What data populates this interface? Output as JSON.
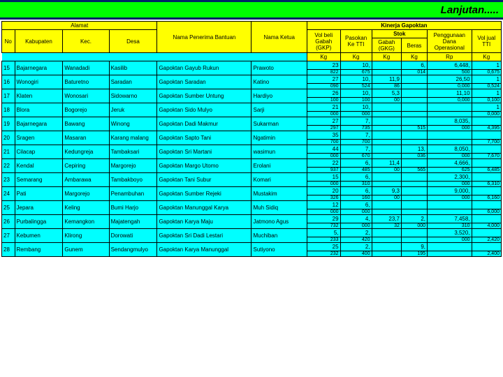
{
  "title": "Lanjutan.....",
  "hdr": {
    "alamat": "Alamat",
    "kinerja": "Kinerja Gapoktan",
    "no": "No",
    "kab": "Kabupaten",
    "kec": "Kec.",
    "desa": "Desa",
    "nama": "Nama Penerima Bantuan",
    "ketua": "Nama Ketua",
    "volbeli": "Vol beli Gabah (GKP)",
    "pasokan": "Pasokan Ke TTI",
    "stok": "Stok",
    "gabah": "Gabah (GKG)",
    "beras": "Beras",
    "pengg": "Penggunaan Dana Operasional",
    "voljual": "Vol jual TTI",
    "kg": "Kg",
    "rp": "Rp"
  },
  "rows": [
    {
      "no": "15",
      "kab": "Bajarnegara",
      "kec": "Wanadadi",
      "desa": "Kasilib",
      "nama": "Gapoktan Gayub Rukun",
      "ketua": "Prawoto",
      "a1": "23",
      "a2": "822",
      "b1": "10,",
      "b2": "675",
      "c1": "",
      "c2": "",
      "d1": "6,",
      "d2": "014",
      "e1": "6,448,",
      "e2": "500",
      "f1": "1",
      "f2": "0,675"
    },
    {
      "no": "16",
      "kab": "Wonogiri",
      "kec": "Baturetno",
      "desa": "Saradan",
      "nama": "Gapoktan Saradan",
      "ketua": "Katino",
      "a1": "27",
      "a2": "090",
      "b1": "10,",
      "b2": "524",
      "c1": "11,9",
      "c2": "86",
      "d1": "",
      "d2": "",
      "e1": "26,50",
      "e2": "0,000",
      "f1": "1",
      "f2": "0,524"
    },
    {
      "no": "17",
      "kab": "Klaten",
      "kec": "Wonosari",
      "desa": "Sidowarno",
      "nama": "Gapoktan Sumber Untung",
      "ketua": "Hardiyo",
      "a1": "26",
      "a2": "100",
      "b1": "10,",
      "b2": "100",
      "c1": "5,3",
      "c2": "00",
      "d1": "",
      "d2": "",
      "e1": "11,10",
      "e2": "0,000",
      "f1": "1",
      "f2": "0,100"
    },
    {
      "no": "18",
      "kab": "Blora",
      "kec": "Bogorejo",
      "desa": "Jeruk",
      "nama": "Gapoktan Sido Mulyo",
      "ketua": "Sarji",
      "a1": "21",
      "a2": "000",
      "b1": "10,",
      "b2": "000",
      "c1": "",
      "c2": "",
      "d1": "",
      "d2": "",
      "e1": "",
      "e2": "",
      "f1": "1",
      "f2": "0,000"
    },
    {
      "no": "19",
      "kab": "Bajarnegara",
      "kec": "Bawang",
      "desa": "Winong",
      "nama": "Gapoktan Dadi Makmur",
      "ketua": "Sukarman",
      "a1": "27",
      "a2": "297",
      "b1": "7,",
      "b2": "735",
      "c1": "",
      "c2": "",
      "d1": "",
      "d2": "515",
      "e1": "8,035,",
      "e2": "000",
      "f1": "",
      "f2": "4,395"
    },
    {
      "no": "20",
      "kab": "Sragen",
      "kec": "Masaran",
      "desa": "Karang malang",
      "nama": "Gapoktan Sapto Tani",
      "ketua": "Ngatimin",
      "a1": "35",
      "a2": "700",
      "b1": "7,",
      "b2": "700",
      "c1": "",
      "c2": "",
      "d1": "",
      "d2": "",
      "e1": "",
      "e2": "",
      "f1": "",
      "f2": "7,700"
    },
    {
      "no": "21",
      "kab": "Cilacap",
      "kec": "Kedungreja",
      "desa": "Tambaksari",
      "nama": "Gapoktan Sri Martani",
      "ketua": "wasimun",
      "a1": "44",
      "a2": "000",
      "b1": "7,",
      "b2": "670",
      "c1": "",
      "c2": "",
      "d1": "13,",
      "d2": "036",
      "e1": "8,050,",
      "e2": "000",
      "f1": "",
      "f2": "7,670"
    },
    {
      "no": "22",
      "kab": "Kendal",
      "kec": "Cepiring",
      "desa": "Margorejo",
      "nama": "Gapoktan Margo Utomo",
      "ketua": "Erolani",
      "a1": "22",
      "a2": "937",
      "b1": "6,",
      "b2": "485",
      "c1": "11,4",
      "c2": "00",
      "d1": "",
      "d2": "565",
      "e1": "4,666,",
      "e2": "625",
      "f1": "",
      "f2": "6,485"
    },
    {
      "no": "23",
      "kab": "Semarang",
      "kec": "Ambarawa",
      "desa": "Tambakboyo",
      "nama": "Gapoktan Tani Subur",
      "ketua": "Komari",
      "a1": "15",
      "a2": "000",
      "b1": "6,",
      "b2": "310",
      "c1": "",
      "c2": "",
      "d1": "",
      "d2": "",
      "e1": "2,300,",
      "e2": "000",
      "f1": "",
      "f2": "6,310"
    },
    {
      "no": "24",
      "kab": "Pati",
      "kec": "Margorejo",
      "desa": "Penambuhan",
      "nama": "Gapoktan Sumber Rejeki",
      "ketua": "Mustakim",
      "a1": "20",
      "a2": "326",
      "b1": "6,",
      "b2": "160",
      "c1": "9,3",
      "c2": "00",
      "d1": "",
      "d2": "",
      "e1": "9,000,",
      "e2": "000",
      "f1": "",
      "f2": "6,160"
    },
    {
      "no": "25",
      "kab": "Jepara",
      "kec": "Keling",
      "desa": "Bumi Harjo",
      "nama": "Gapoktan Manunggal Karya",
      "ketua": "Muh Sidiq",
      "a1": "12",
      "a2": "000",
      "b1": "6,",
      "b2": "000",
      "c1": "",
      "c2": "",
      "d1": "",
      "d2": "",
      "e1": "",
      "e2": "",
      "f1": "",
      "f2": "6,000"
    },
    {
      "no": "26",
      "kab": "Purbalingga",
      "kec": "Kemangkon",
      "desa": "Majatengah",
      "nama": "Gapoktan Karya Maju",
      "ketua": "Jatmono Agus",
      "a1": "29",
      "a2": "732",
      "b1": "4,",
      "b2": "000",
      "c1": "23,7",
      "c2": "32",
      "d1": "2,",
      "d2": "000",
      "e1": "7,458,",
      "e2": "310",
      "f1": "",
      "f2": "4,000"
    },
    {
      "no": "27",
      "kab": "Kebumen",
      "kec": "Klirong",
      "desa": "Dorowati",
      "nama": "Gapoktan Sri Dadi Lestari",
      "ketua": "Muchiban",
      "a1": "5,",
      "a2": "233",
      "b1": "2,",
      "b2": "420",
      "c1": "",
      "c2": "",
      "d1": "",
      "d2": "",
      "e1": "3,520,",
      "e2": "000",
      "f1": "",
      "f2": "2,420"
    },
    {
      "no": "28",
      "kab": "Rembang",
      "kec": "Gunem",
      "desa": "Sendangmulyo",
      "nama": "Gapoktan Karya Manunggal",
      "ketua": "Sutiyono",
      "a1": "25",
      "a2": "232",
      "b1": "2,",
      "b2": "400",
      "c1": "",
      "c2": "",
      "d1": "9,",
      "d2": "195",
      "e1": "",
      "e2": "",
      "f1": "",
      "f2": "2,400"
    }
  ]
}
